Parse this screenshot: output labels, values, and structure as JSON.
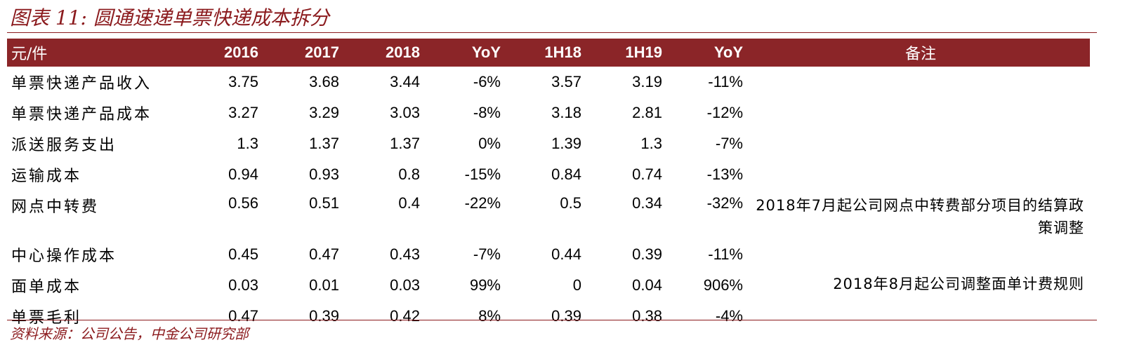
{
  "title": "图表 11:  圆通速递单票快递成本拆分",
  "source": "资料来源：公司公告，中金公司研究部",
  "header": [
    "元/件",
    "2016",
    "2017",
    "2018",
    "YoY",
    "1H18",
    "1H19",
    "YoY",
    "备注"
  ],
  "rows": [
    {
      "label": "单票快递产品收入",
      "values": [
        "3.75",
        "3.68",
        "3.44",
        "-6%",
        "3.57",
        "3.19",
        "-11%"
      ],
      "note": ""
    },
    {
      "label": "单票快递产品成本",
      "values": [
        "3.27",
        "3.29",
        "3.03",
        "-8%",
        "3.18",
        "2.81",
        "-12%"
      ],
      "note": ""
    },
    {
      "label": "派送服务支出",
      "values": [
        "1.3",
        "1.37",
        "1.37",
        "0%",
        "1.39",
        "1.3",
        "-7%"
      ],
      "note": ""
    },
    {
      "label": "运输成本",
      "values": [
        "0.94",
        "0.93",
        "0.8",
        "-15%",
        "0.84",
        "0.74",
        "-13%"
      ],
      "note": ""
    },
    {
      "label": "网点中转费",
      "values": [
        "0.56",
        "0.51",
        "0.4",
        "-22%",
        "0.5",
        "0.34",
        "-32%"
      ],
      "note": "2018年7月起公司网点中转费部分项目的结算政策调整"
    },
    {
      "label": "中心操作成本",
      "values": [
        "0.45",
        "0.47",
        "0.43",
        "-7%",
        "0.44",
        "0.39",
        "-11%"
      ],
      "note": ""
    },
    {
      "label": "面单成本",
      "values": [
        "0.03",
        "0.01",
        "0.03",
        "99%",
        "0",
        "0.04",
        "906%"
      ],
      "note": "2018年8月起公司调整面单计费规则"
    },
    {
      "label": "单票毛利",
      "values": [
        "0.47",
        "0.39",
        "0.42",
        "8%",
        "0.39",
        "0.38",
        "-4%"
      ],
      "note": ""
    }
  ]
}
